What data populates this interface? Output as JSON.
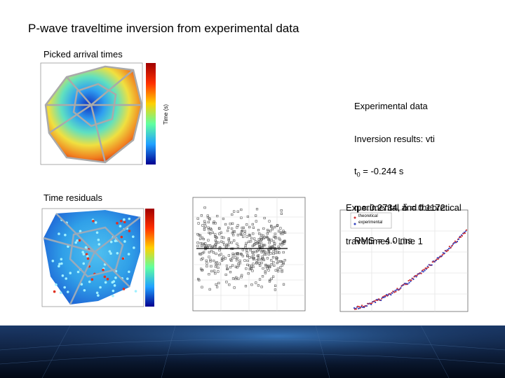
{
  "title": "P-wave traveltime inversion from experimental data",
  "panels": {
    "arrival": {
      "caption": "Picked arrival times",
      "colorbar_label": "Time (s)"
    },
    "residuals": {
      "caption": "Time residuals"
    },
    "traveltimes": {
      "caption_lines": [
        "Experimental and theoretical",
        "traveltimes - Line 1"
      ],
      "legend": [
        "theoretical",
        "experimental"
      ]
    }
  },
  "results": {
    "heading": "Experimental data",
    "method": "Inversion results: vti",
    "t0_symbol": "t",
    "t0_subscript": "0",
    "t0_value": " = -0.244 s",
    "anisotropy": "η = 0.2734, δ = 0.1172",
    "rms": "RMS = 4.0 ms"
  }
}
